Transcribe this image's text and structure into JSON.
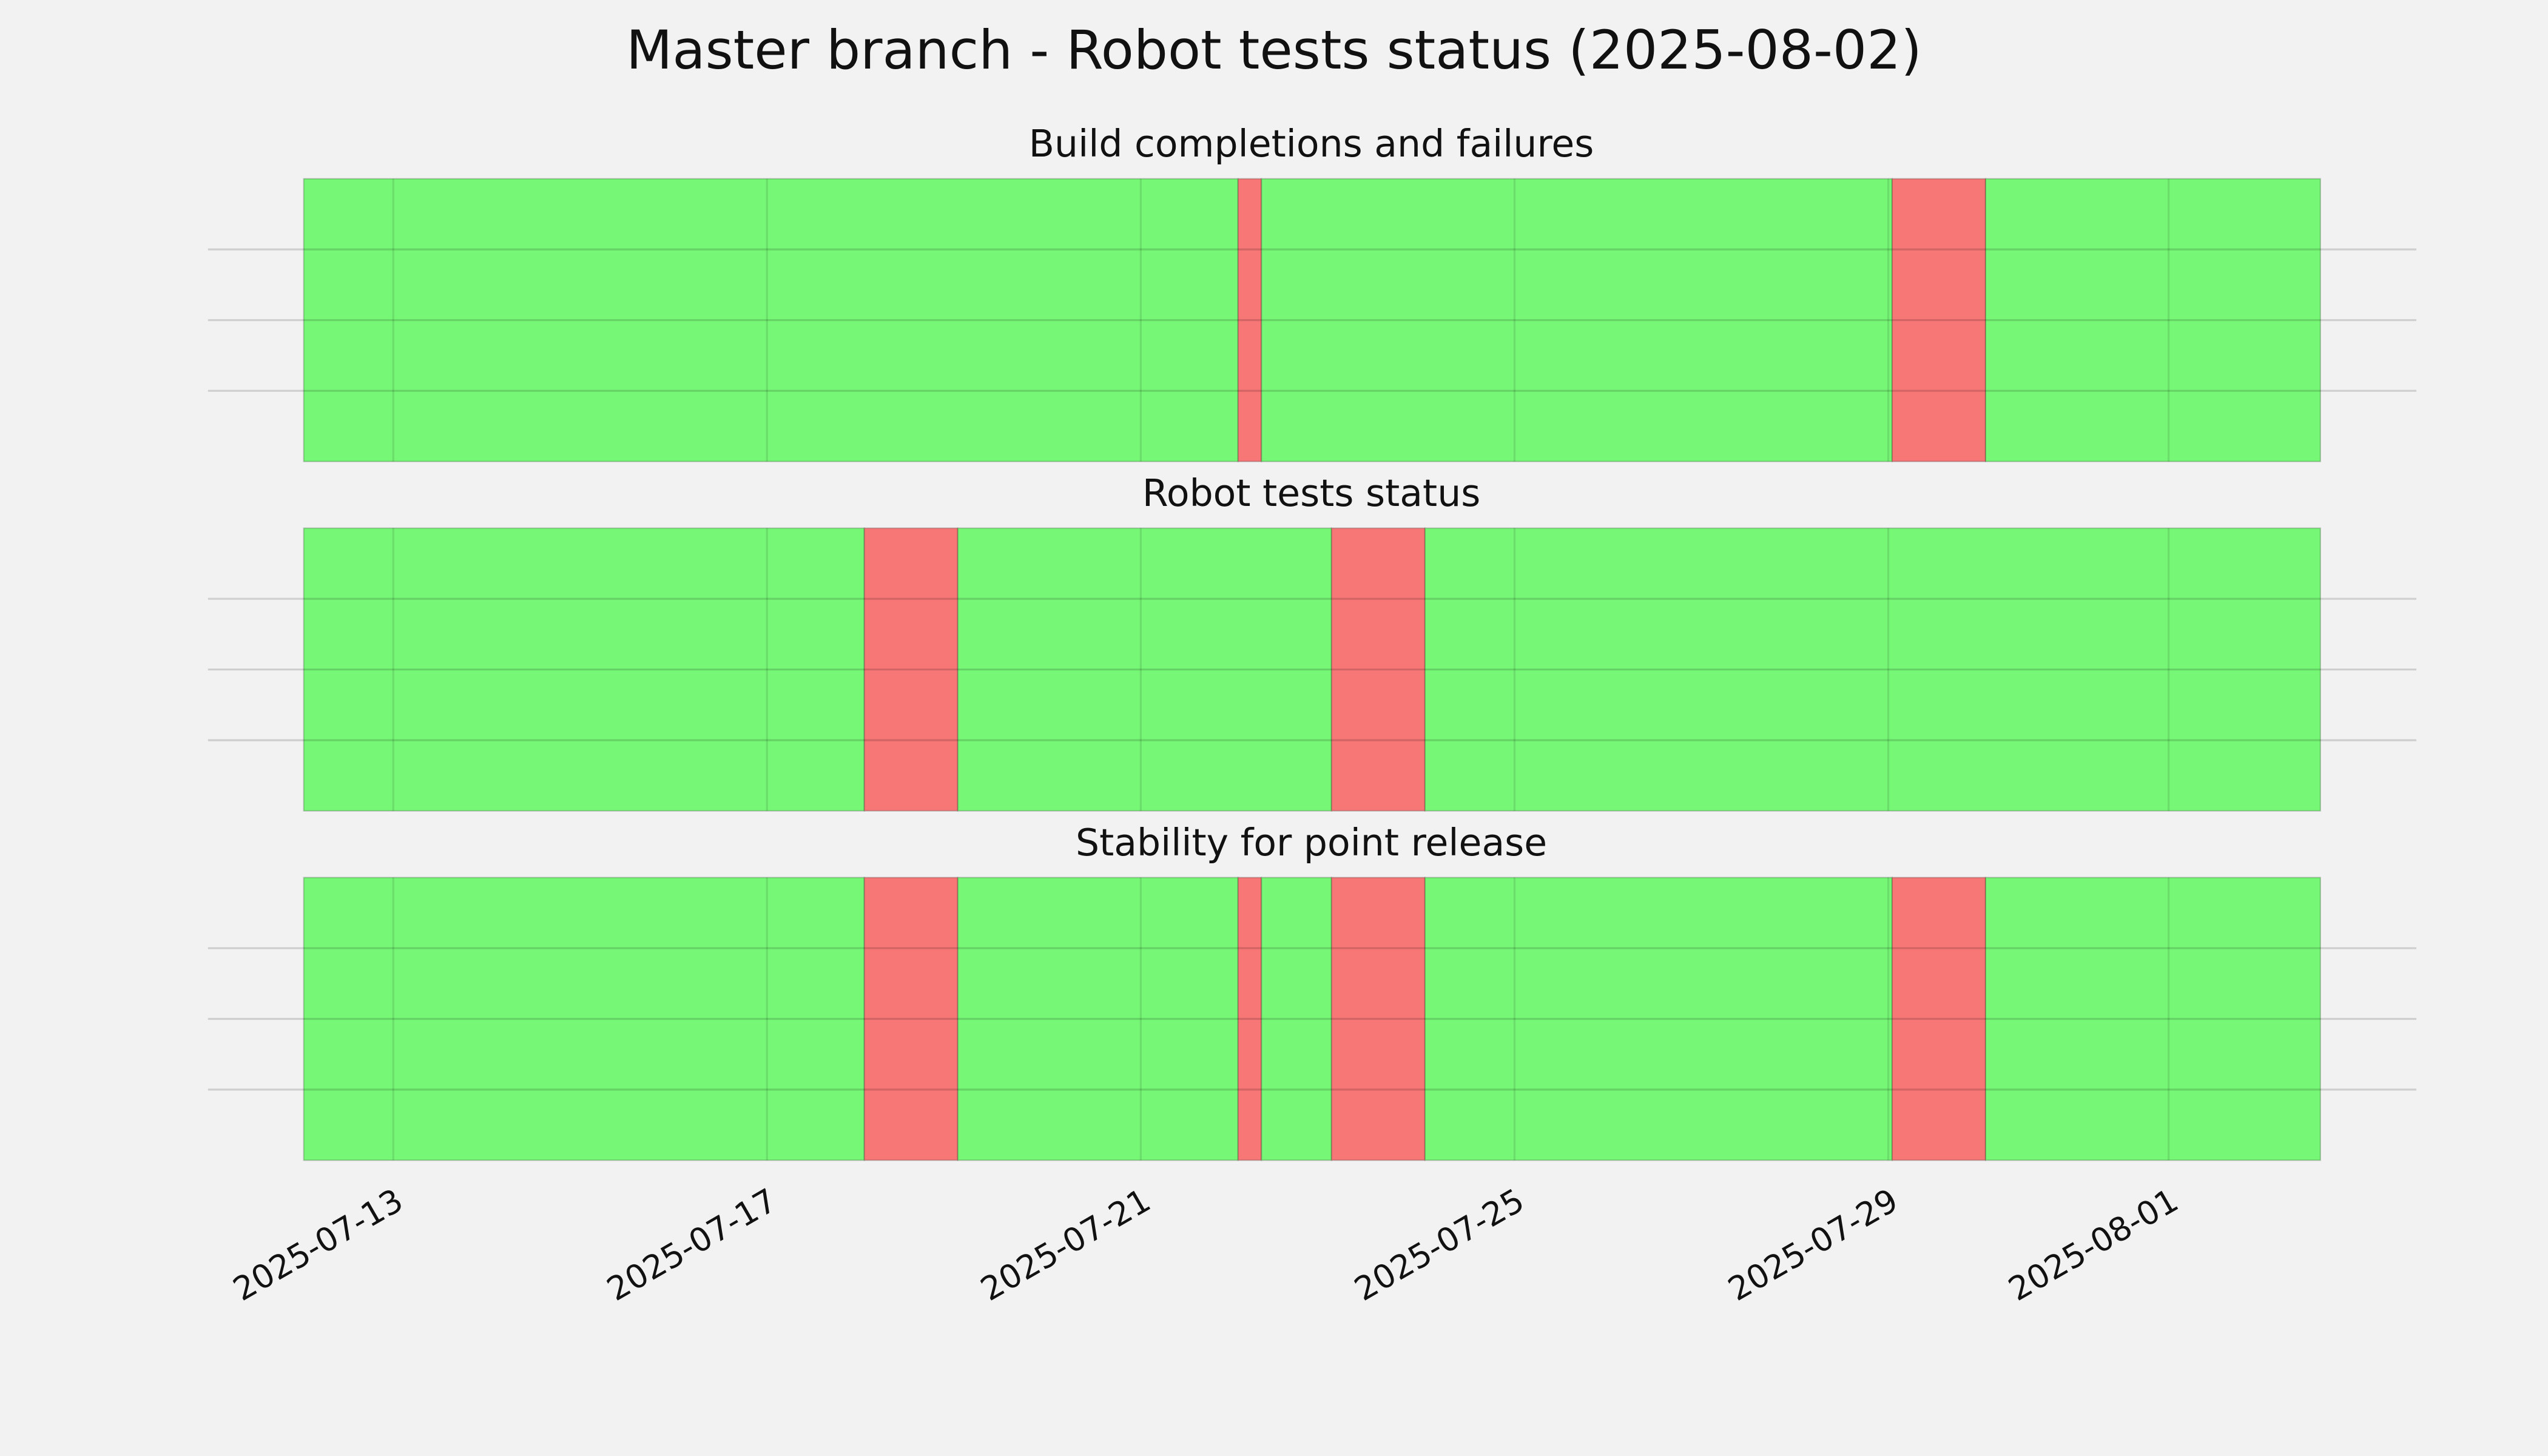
{
  "chart_data": {
    "type": "timeline",
    "title": "Master branch - Robot tests status (2025-08-02)",
    "xlim": [
      "2025-07-11 00:25",
      "2025-08-03 15:39"
    ],
    "xticks": [
      "2025-07-13",
      "2025-07-17",
      "2025-07-21",
      "2025-07-25",
      "2025-07-29",
      "2025-08-01"
    ],
    "grid": true,
    "panels": [
      {
        "title": "Build completions and failures",
        "ylim": [
          0,
          1
        ],
        "yticks": [
          0.25,
          0.5,
          0.75
        ],
        "spans": [
          {
            "start": "2025-07-12 01:00",
            "end": "2025-07-22 01:00",
            "color": "#76f776"
          },
          {
            "start": "2025-07-22 01:00",
            "end": "2025-07-22 07:00",
            "color": "#f77676"
          },
          {
            "start": "2025-07-22 07:00",
            "end": "2025-07-29 01:00",
            "color": "#76f776"
          },
          {
            "start": "2025-07-29 01:00",
            "end": "2025-07-30 01:00",
            "color": "#f77676"
          },
          {
            "start": "2025-07-30 01:00",
            "end": "2025-08-02 15:00",
            "color": "#76f776"
          }
        ]
      },
      {
        "title": "Robot tests status",
        "ylim": [
          0,
          1
        ],
        "yticks": [
          0.25,
          0.5,
          0.75
        ],
        "spans": [
          {
            "start": "2025-07-12 01:00",
            "end": "2025-07-18 01:00",
            "color": "#76f776"
          },
          {
            "start": "2025-07-18 01:00",
            "end": "2025-07-19 01:00",
            "color": "#f77676"
          },
          {
            "start": "2025-07-19 01:00",
            "end": "2025-07-23 01:00",
            "color": "#76f776"
          },
          {
            "start": "2025-07-23 01:00",
            "end": "2025-07-24 01:00",
            "color": "#f77676"
          },
          {
            "start": "2025-07-24 01:00",
            "end": "2025-08-02 15:00",
            "color": "#76f776"
          }
        ]
      },
      {
        "title": "Stability for point release",
        "ylim": [
          0,
          1
        ],
        "yticks": [
          0.25,
          0.5,
          0.75
        ],
        "spans": [
          {
            "start": "2025-07-12 01:00",
            "end": "2025-07-18 01:00",
            "color": "#76f776"
          },
          {
            "start": "2025-07-18 01:00",
            "end": "2025-07-19 01:00",
            "color": "#f77676"
          },
          {
            "start": "2025-07-19 01:00",
            "end": "2025-07-22 01:00",
            "color": "#76f776"
          },
          {
            "start": "2025-07-22 01:00",
            "end": "2025-07-22 07:00",
            "color": "#f77676"
          },
          {
            "start": "2025-07-22 07:00",
            "end": "2025-07-23 01:00",
            "color": "#76f776"
          },
          {
            "start": "2025-07-23 01:00",
            "end": "2025-07-24 01:00",
            "color": "#f77676"
          },
          {
            "start": "2025-07-24 01:00",
            "end": "2025-07-29 01:00",
            "color": "#76f776"
          },
          {
            "start": "2025-07-29 01:00",
            "end": "2025-07-30 01:00",
            "color": "#f77676"
          },
          {
            "start": "2025-07-30 01:00",
            "end": "2025-08-02 15:00",
            "color": "#76f776"
          }
        ]
      }
    ]
  }
}
